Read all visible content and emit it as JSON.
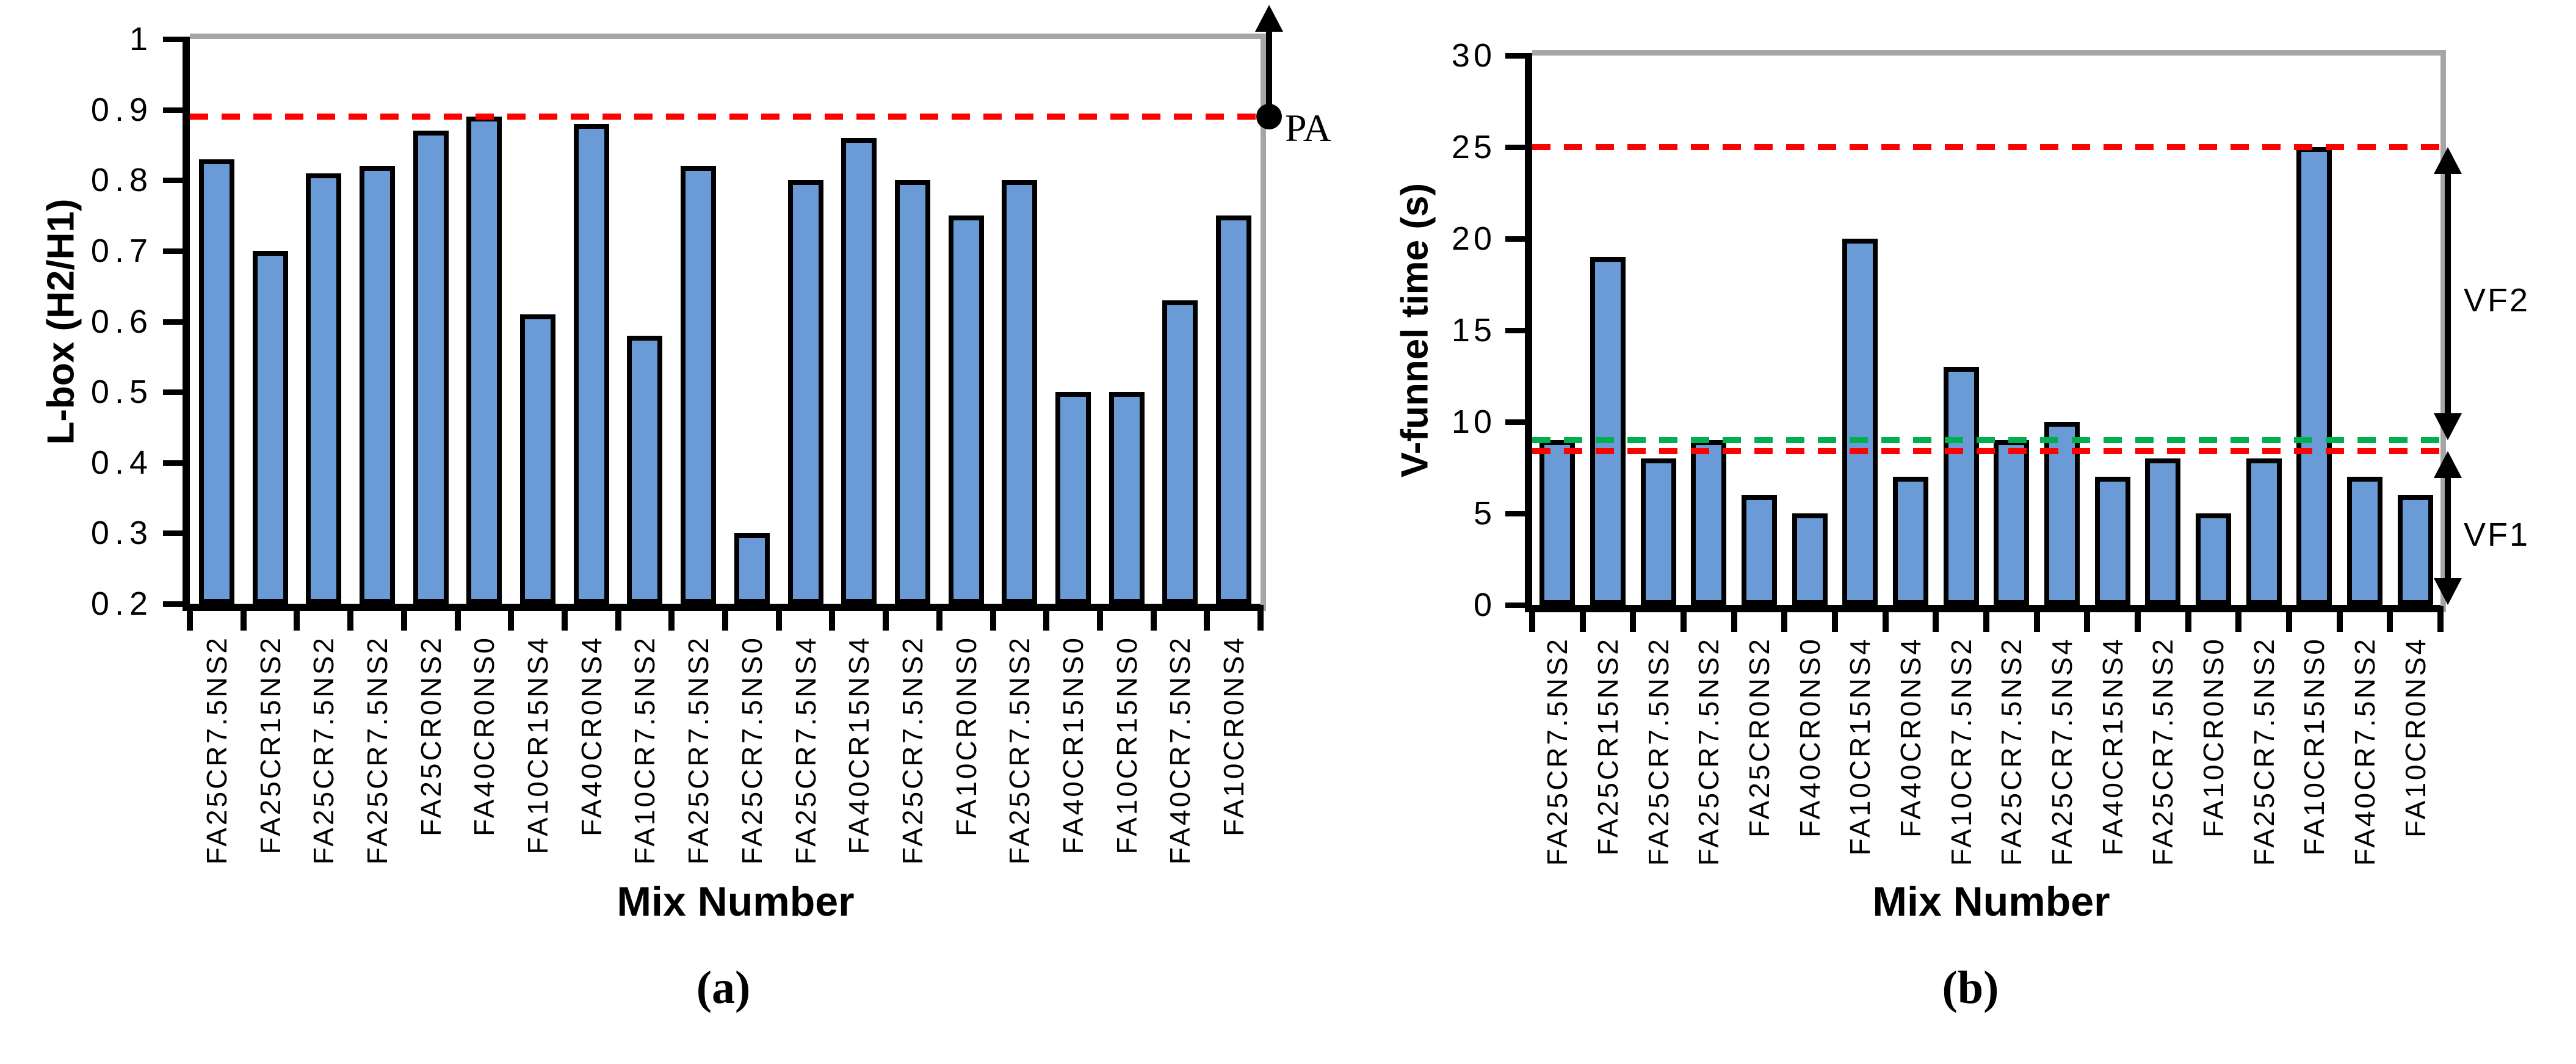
{
  "figure_title": "",
  "colors": {
    "bar_fill": "#6B9BD7",
    "bar_stroke": "#000000",
    "axis": "#000000",
    "frame_gray": "#A6A6A6",
    "red_dash": "#FF0000",
    "green_dash": "#00B050",
    "text": "#000000",
    "background": "#FFFFFF"
  },
  "chart_data": [
    {
      "panel": "a",
      "caption": "(a)",
      "type": "bar",
      "xlabel": "Mix Number",
      "ylabel": "L-box (H2/H1)",
      "ylim": [
        0.2,
        1
      ],
      "y_tick_labels": [
        "0.2",
        "0.3",
        "0.4",
        "0.5",
        "0.6",
        "0.7",
        "0.8",
        "0.9",
        "1"
      ],
      "grid": false,
      "legend": "none",
      "categories": [
        "FA25CR7.5NS2",
        "FA25CR15NS2",
        "FA25CR7.5NS2",
        "FA25CR7.5NS2",
        "FA25CR0NS2",
        "FA40CR0NS0",
        "FA10CR15NS4",
        "FA40CR0NS4",
        "FA10CR7.5NS2",
        "FA25CR7.5NS2",
        "FA25CR7.5NS0",
        "FA25CR7.5NS4",
        "FA40CR15NS4",
        "FA25CR7.5NS2",
        "FA10CR0NS0",
        "FA25CR7.5NS2",
        "FA40CR15NS0",
        "FA10CR15NS0",
        "FA40CR7.5NS2",
        "FA10CR0NS4"
      ],
      "values": [
        0.83,
        0.7,
        0.81,
        0.82,
        0.87,
        0.89,
        0.61,
        0.88,
        0.58,
        0.82,
        0.3,
        0.8,
        0.86,
        0.8,
        0.75,
        0.8,
        0.5,
        0.5,
        0.63,
        0.75
      ],
      "threshold_lines": [
        {
          "value": 0.89,
          "color": "red",
          "extend_right": false
        }
      ],
      "point_annotation": {
        "label": "PA",
        "value": 0.89
      }
    },
    {
      "panel": "b",
      "caption": "(b)",
      "type": "bar",
      "xlabel": "Mix Number",
      "ylabel": "V-funnel time (s)",
      "ylim": [
        0,
        30
      ],
      "y_tick_labels": [
        "0",
        "5",
        "10",
        "15",
        "20",
        "25",
        "30"
      ],
      "grid": false,
      "legend": "none",
      "categories": [
        "FA25CR7.5NS2",
        "FA25CR15NS2",
        "FA25CR7.5NS2",
        "FA25CR7.5NS2",
        "FA25CR0NS2",
        "FA40CR0NS0",
        "FA10CR15NS4",
        "FA40CR0NS4",
        "FA10CR7.5NS2",
        "FA25CR7.5NS2",
        "FA25CR7.5NS4",
        "FA40CR15NS4",
        "FA25CR7.5NS2",
        "FA10CR0NS0",
        "FA25CR7.5NS2",
        "FA10CR15NS0",
        "FA40CR7.5NS2",
        "FA10CR0NS4"
      ],
      "values": [
        9,
        19,
        8,
        9,
        6,
        5,
        20,
        7,
        13,
        9,
        10,
        7,
        8,
        5,
        8,
        25,
        7,
        6
      ],
      "threshold_lines": [
        {
          "value": 25,
          "color": "red",
          "extend_right": true
        },
        {
          "value": 9,
          "color": "green",
          "extend_right": true
        },
        {
          "value": 8.4,
          "color": "red",
          "extend_right": true
        }
      ],
      "range_annotations": [
        {
          "label": "VF2",
          "from": 25,
          "to": 9
        },
        {
          "label": "VF1",
          "from": 8.4,
          "to": 0
        }
      ]
    }
  ]
}
